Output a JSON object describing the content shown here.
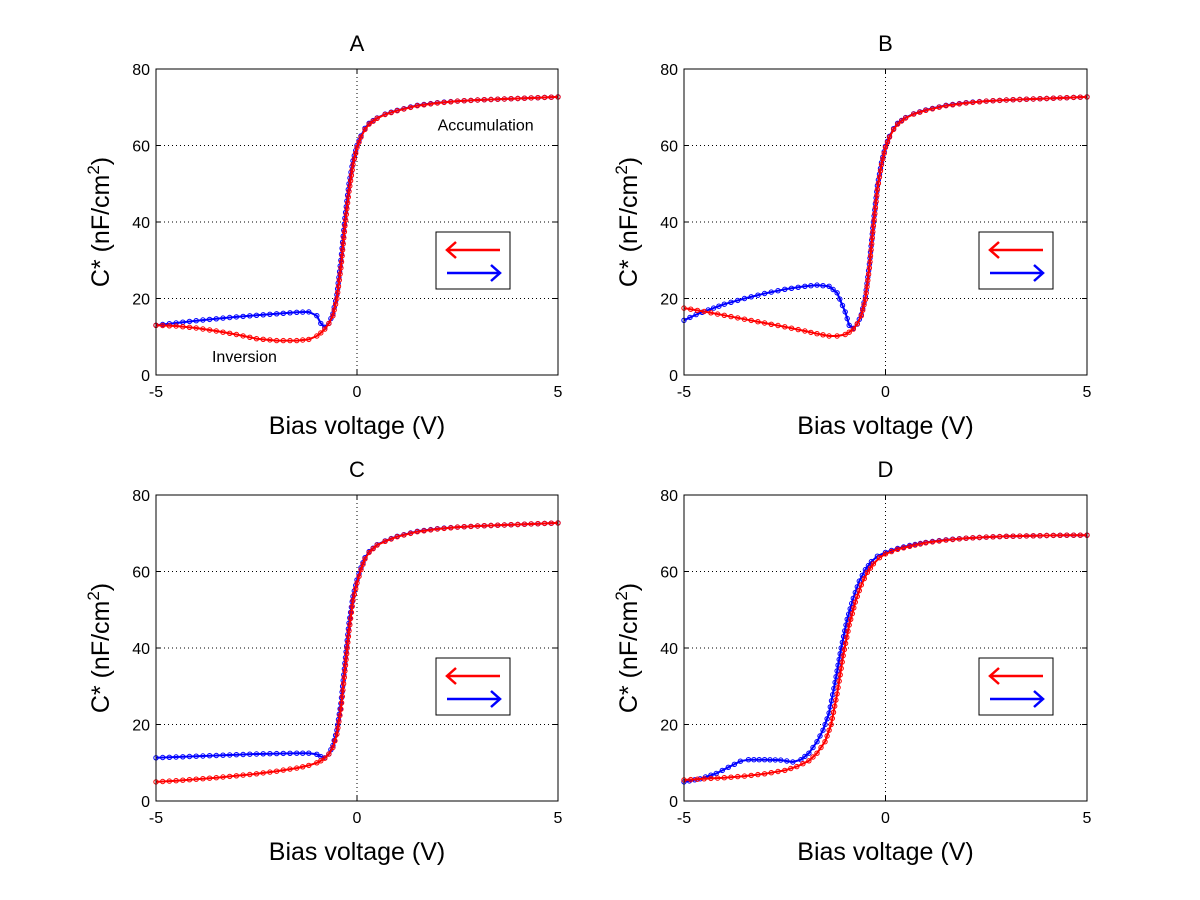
{
  "figure": {
    "colors": {
      "forward": "#0000ff",
      "reverse": "#ff0000",
      "axis": "#000000"
    }
  },
  "chart_data": [
    {
      "type": "line",
      "title": "A",
      "xlabel": "Bias voltage (V)",
      "ylabel_main": "C* (nF/cm",
      "ylabel_sup": "2",
      "ylabel_close": ")",
      "xlim": [
        -5,
        5
      ],
      "ylim": [
        0,
        80
      ],
      "xticks": [
        -5,
        0,
        5
      ],
      "yticks": [
        0,
        20,
        40,
        60,
        80
      ],
      "xtick_labels": [
        "-5",
        "0",
        "5"
      ],
      "ytick_labels": [
        "0",
        "20",
        "40",
        "60",
        "80"
      ],
      "grid": true,
      "legend": {
        "placement": "right",
        "entries": [
          {
            "name": "reverse sweep",
            "direction": "left",
            "color": "#ff0000"
          },
          {
            "name": "forward sweep",
            "direction": "right",
            "color": "#0000ff"
          }
        ]
      },
      "annotations": [
        {
          "text": "Accumulation",
          "x": 3.2,
          "y": 65.5
        },
        {
          "text": "Inversion",
          "x": -2.8,
          "y": 5
        }
      ],
      "series": [
        {
          "name": "forward sweep",
          "color": "#0000ff",
          "x": [
            -5,
            -4.5,
            -4,
            -3.5,
            -3,
            -2.5,
            -2,
            -1.5,
            -1.2,
            -1.0,
            -0.9,
            -0.8,
            -0.7,
            -0.6,
            -0.5,
            -0.4,
            -0.3,
            -0.2,
            -0.1,
            0,
            0.1,
            0.2,
            0.3,
            0.5,
            0.7,
            1,
            1.5,
            2,
            2.5,
            3,
            3.5,
            4,
            4.5,
            5
          ],
          "y": [
            13,
            13.6,
            14.2,
            14.7,
            15.2,
            15.6,
            16,
            16.4,
            16.5,
            15.5,
            13.5,
            12.5,
            13.5,
            16,
            21,
            30,
            41,
            50,
            56,
            60,
            62.5,
            64.5,
            65.8,
            67.2,
            68.2,
            69.2,
            70.5,
            71.2,
            71.6,
            71.9,
            72.1,
            72.3,
            72.5,
            72.7
          ]
        },
        {
          "name": "reverse sweep",
          "color": "#ff0000",
          "x": [
            -5,
            -4.5,
            -4,
            -3.5,
            -3,
            -2.5,
            -2,
            -1.5,
            -1.2,
            -1.0,
            -0.9,
            -0.8,
            -0.7,
            -0.6,
            -0.5,
            -0.4,
            -0.3,
            -0.2,
            -0.1,
            0,
            0.1,
            0.2,
            0.3,
            0.5,
            0.7,
            1,
            1.5,
            2,
            2.5,
            3,
            3.5,
            4,
            4.5,
            5
          ],
          "y": [
            13,
            12.8,
            12.3,
            11.5,
            10.6,
            9.5,
            9,
            9,
            9.3,
            10.2,
            11,
            12,
            13.5,
            15.5,
            20,
            28,
            39,
            48,
            55,
            59.5,
            62.2,
            64.2,
            65.6,
            67.1,
            68.1,
            69.1,
            70.4,
            71.1,
            71.6,
            71.9,
            72.1,
            72.3,
            72.5,
            72.7
          ]
        }
      ]
    },
    {
      "type": "line",
      "title": "B",
      "xlabel": "Bias voltage (V)",
      "ylabel_main": "C* (nF/cm",
      "ylabel_sup": "2",
      "ylabel_close": ")",
      "xlim": [
        -5,
        5
      ],
      "ylim": [
        0,
        80
      ],
      "xticks": [
        -5,
        0,
        5
      ],
      "yticks": [
        0,
        20,
        40,
        60,
        80
      ],
      "xtick_labels": [
        "-5",
        "0",
        "5"
      ],
      "ytick_labels": [
        "0",
        "20",
        "40",
        "60",
        "80"
      ],
      "grid": true,
      "legend": {
        "placement": "right",
        "entries": [
          {
            "name": "reverse sweep",
            "direction": "left",
            "color": "#ff0000"
          },
          {
            "name": "forward sweep",
            "direction": "right",
            "color": "#0000ff"
          }
        ]
      },
      "annotations": [],
      "series": [
        {
          "name": "forward sweep",
          "color": "#0000ff",
          "x": [
            -5,
            -4.7,
            -4.4,
            -4,
            -3.5,
            -3,
            -2.5,
            -2,
            -1.7,
            -1.4,
            -1.2,
            -1.0,
            -0.9,
            -0.8,
            -0.7,
            -0.6,
            -0.5,
            -0.4,
            -0.3,
            -0.2,
            -0.1,
            0,
            0.1,
            0.2,
            0.3,
            0.5,
            0.7,
            1,
            1.5,
            2,
            2.5,
            3,
            3.5,
            4,
            4.5,
            5
          ],
          "y": [
            14.3,
            15.8,
            17,
            18.5,
            20,
            21.3,
            22.4,
            23.2,
            23.5,
            23.2,
            21.5,
            16.5,
            13,
            12.2,
            13.3,
            15.8,
            20.5,
            29,
            40,
            49.5,
            55.5,
            59.8,
            62.4,
            64.4,
            65.8,
            67.3,
            68.3,
            69.3,
            70.5,
            71.2,
            71.6,
            71.9,
            72.1,
            72.3,
            72.5,
            72.7
          ]
        },
        {
          "name": "reverse sweep",
          "color": "#ff0000",
          "x": [
            -5,
            -4.5,
            -4,
            -3.5,
            -3,
            -2.5,
            -2,
            -1.7,
            -1.4,
            -1.2,
            -1.0,
            -0.9,
            -0.8,
            -0.7,
            -0.6,
            -0.5,
            -0.4,
            -0.3,
            -0.2,
            -0.1,
            0,
            0.1,
            0.2,
            0.3,
            0.5,
            0.7,
            1,
            1.5,
            2,
            2.5,
            3,
            3.5,
            4,
            4.5,
            5
          ],
          "y": [
            17.5,
            16.6,
            15.6,
            14.6,
            13.6,
            12.6,
            11.5,
            10.8,
            10.2,
            10.2,
            10.6,
            11.2,
            12,
            13.4,
            15.5,
            19.8,
            28,
            39,
            48.5,
            55,
            59.5,
            62.2,
            64.2,
            65.6,
            67.2,
            68.2,
            69.2,
            70.4,
            71.1,
            71.6,
            71.9,
            72.1,
            72.3,
            72.5,
            72.7
          ]
        }
      ]
    },
    {
      "type": "line",
      "title": "C",
      "xlabel": "Bias voltage (V)",
      "ylabel_main": "C* (nF/cm",
      "ylabel_sup": "2",
      "ylabel_close": ")",
      "xlim": [
        -5,
        5
      ],
      "ylim": [
        0,
        80
      ],
      "xticks": [
        -5,
        0,
        5
      ],
      "yticks": [
        0,
        20,
        40,
        60,
        80
      ],
      "xtick_labels": [
        "-5",
        "0",
        "5"
      ],
      "ytick_labels": [
        "0",
        "20",
        "40",
        "60",
        "80"
      ],
      "grid": true,
      "legend": {
        "placement": "right",
        "entries": [
          {
            "name": "reverse sweep",
            "direction": "left",
            "color": "#ff0000"
          },
          {
            "name": "forward sweep",
            "direction": "right",
            "color": "#0000ff"
          }
        ]
      },
      "annotations": [],
      "series": [
        {
          "name": "forward sweep",
          "color": "#0000ff",
          "x": [
            -5,
            -4.5,
            -4,
            -3.5,
            -3,
            -2.5,
            -2,
            -1.5,
            -1.2,
            -1.0,
            -0.9,
            -0.8,
            -0.7,
            -0.6,
            -0.5,
            -0.4,
            -0.3,
            -0.2,
            -0.1,
            0,
            0.1,
            0.2,
            0.3,
            0.5,
            0.7,
            1,
            1.5,
            2,
            2.5,
            3,
            3.5,
            4,
            4.5,
            5
          ],
          "y": [
            11.3,
            11.5,
            11.7,
            11.9,
            12.1,
            12.3,
            12.4,
            12.5,
            12.5,
            12.2,
            11.6,
            11.3,
            12.3,
            14.5,
            18.5,
            25.5,
            36,
            46.5,
            53.5,
            57.8,
            61,
            63.6,
            65.2,
            67,
            68,
            69.2,
            70.5,
            71.2,
            71.6,
            71.9,
            72.1,
            72.3,
            72.5,
            72.7
          ]
        },
        {
          "name": "reverse sweep",
          "color": "#ff0000",
          "x": [
            -5,
            -4.5,
            -4,
            -3.5,
            -3,
            -2.5,
            -2,
            -1.5,
            -1.2,
            -1.0,
            -0.9,
            -0.8,
            -0.7,
            -0.6,
            -0.5,
            -0.4,
            -0.3,
            -0.2,
            -0.1,
            0,
            0.1,
            0.2,
            0.3,
            0.5,
            0.7,
            1,
            1.5,
            2,
            2.5,
            3,
            3.5,
            4,
            4.5,
            5
          ],
          "y": [
            5,
            5.3,
            5.7,
            6.1,
            6.6,
            7.1,
            7.8,
            8.6,
            9.3,
            10,
            10.5,
            11.2,
            12.3,
            14,
            17.5,
            24,
            34,
            44.5,
            52.5,
            57,
            60.5,
            63.3,
            65,
            66.9,
            67.9,
            69.1,
            70.4,
            71.1,
            71.6,
            71.9,
            72.1,
            72.3,
            72.5,
            72.7
          ]
        }
      ]
    },
    {
      "type": "line",
      "title": "D",
      "xlabel": "Bias voltage (V)",
      "ylabel_main": "C* (nF/cm",
      "ylabel_sup": "2",
      "ylabel_close": ")",
      "xlim": [
        -5,
        5
      ],
      "ylim": [
        0,
        80
      ],
      "xticks": [
        -5,
        0,
        5
      ],
      "yticks": [
        0,
        20,
        40,
        60,
        80
      ],
      "xtick_labels": [
        "-5",
        "0",
        "5"
      ],
      "ytick_labels": [
        "0",
        "20",
        "40",
        "60",
        "80"
      ],
      "grid": true,
      "legend": {
        "placement": "right",
        "entries": [
          {
            "name": "reverse sweep",
            "direction": "left",
            "color": "#ff0000"
          },
          {
            "name": "forward sweep",
            "direction": "right",
            "color": "#0000ff"
          }
        ]
      },
      "annotations": [],
      "series": [
        {
          "name": "forward sweep",
          "color": "#0000ff",
          "x": [
            -5,
            -4.6,
            -4.2,
            -3.9,
            -3.6,
            -3.4,
            -3.0,
            -2.6,
            -2.3,
            -2.1,
            -1.9,
            -1.7,
            -1.55,
            -1.4,
            -1.25,
            -1.1,
            -0.95,
            -0.8,
            -0.65,
            -0.5,
            -0.35,
            -0.2,
            0,
            0.3,
            0.6,
            1,
            1.5,
            2,
            2.5,
            3,
            3.5,
            4,
            4.5,
            5
          ],
          "y": [
            5,
            5.8,
            7.2,
            8.8,
            10.4,
            10.8,
            10.8,
            10.7,
            10.2,
            10.8,
            12.5,
            15.5,
            18.5,
            23,
            31,
            40,
            47.5,
            53,
            57.5,
            60.5,
            62.6,
            64,
            65,
            66,
            66.8,
            67.6,
            68.3,
            68.7,
            69,
            69.2,
            69.3,
            69.4,
            69.5,
            69.5
          ]
        },
        {
          "name": "reverse sweep",
          "color": "#ff0000",
          "x": [
            -5,
            -4.5,
            -4,
            -3.5,
            -3,
            -2.5,
            -2.2,
            -1.9,
            -1.7,
            -1.5,
            -1.35,
            -1.2,
            -1.05,
            -0.9,
            -0.75,
            -0.6,
            -0.45,
            -0.3,
            -0.15,
            0,
            0.3,
            0.6,
            1,
            1.5,
            2,
            2.5,
            3,
            3.5,
            4,
            4.5,
            5
          ],
          "y": [
            5.5,
            5.8,
            6.1,
            6.5,
            7.1,
            8,
            9,
            10.5,
            12.5,
            15.5,
            20,
            28,
            38,
            46,
            52,
            56.5,
            59.8,
            62,
            63.6,
            64.6,
            65.8,
            66.6,
            67.5,
            68.2,
            68.7,
            69,
            69.2,
            69.3,
            69.4,
            69.5,
            69.5
          ]
        }
      ]
    }
  ]
}
